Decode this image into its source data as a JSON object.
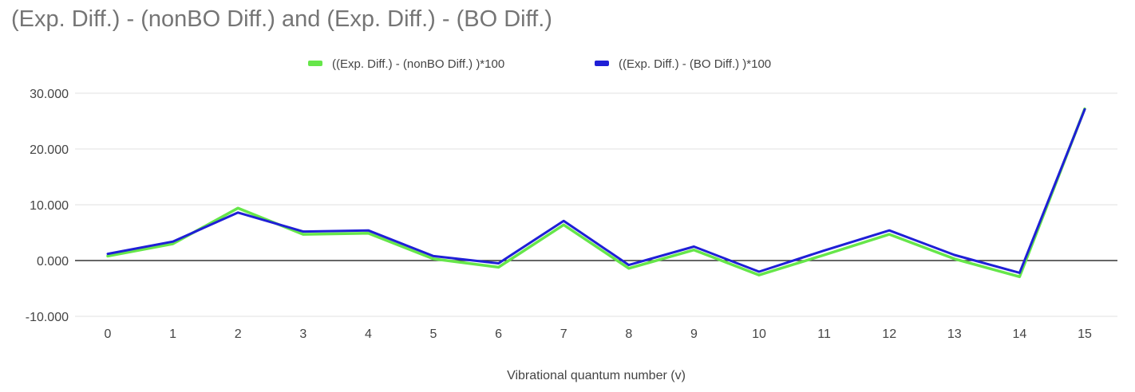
{
  "chart_data": {
    "type": "line",
    "title": "(Exp. Diff.) - (nonBO Diff.) and (Exp. Diff.) - (BO Diff.)",
    "xlabel": "Vibrational quantum number (v)",
    "ylabel": "",
    "categories": [
      "0",
      "1",
      "2",
      "3",
      "4",
      "5",
      "6",
      "7",
      "8",
      "9",
      "10",
      "11",
      "12",
      "13",
      "14",
      "15"
    ],
    "ylim": [
      -10,
      30
    ],
    "yticks": [
      -10,
      0,
      10,
      20,
      30
    ],
    "ytick_labels": [
      "-10.000",
      "0.000",
      "10.000",
      "20.000",
      "30.000"
    ],
    "grid": true,
    "legend_position": "top-center",
    "series": [
      {
        "name": "((Exp. Diff.) - (nonBO Diff.) )*100",
        "color": "#66e64a",
        "values": [
          0.8,
          3.0,
          9.4,
          4.7,
          4.9,
          0.3,
          -1.2,
          6.4,
          -1.4,
          1.9,
          -2.6,
          1.0,
          4.7,
          0.3,
          -2.9,
          27.2
        ]
      },
      {
        "name": "((Exp. Diff.) - (BO Diff.) )*100",
        "color": "#1f1fd6",
        "values": [
          1.2,
          3.4,
          8.6,
          5.2,
          5.4,
          0.8,
          -0.5,
          7.1,
          -0.8,
          2.5,
          -2.0,
          1.8,
          5.4,
          1.0,
          -2.2,
          27.1
        ]
      }
    ]
  }
}
